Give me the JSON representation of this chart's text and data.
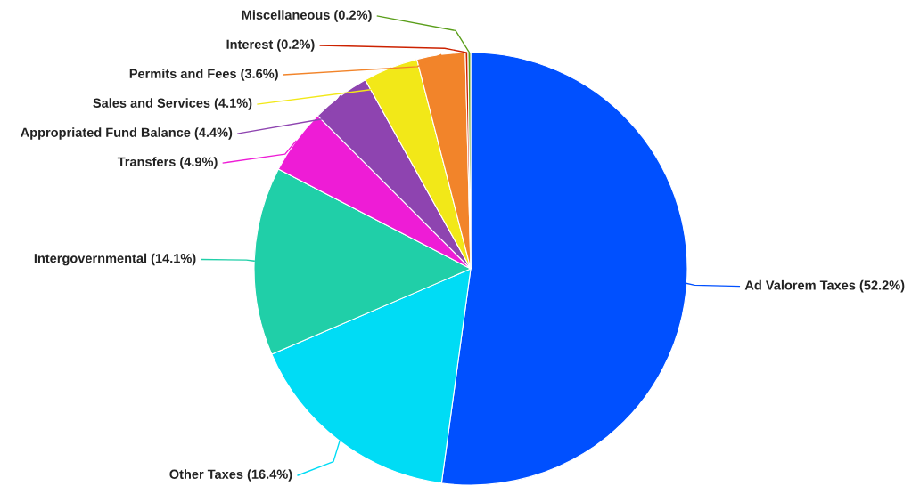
{
  "chart_data": {
    "type": "pie",
    "categories": [
      "Ad Valorem Taxes",
      "Other Taxes",
      "Intergovernmental",
      "Transfers",
      "Appropriated Fund Balance",
      "Sales and Services",
      "Permits and Fees",
      "Interest",
      "Miscellaneous"
    ],
    "values": [
      52.2,
      16.4,
      14.1,
      4.9,
      4.4,
      4.1,
      3.6,
      0.2,
      0.2
    ],
    "value_labels": [
      "(52.2%)",
      "(16.4%)",
      "(14.1%)",
      "(4.9%)",
      "(4.4%)",
      "(4.1%)",
      "(3.6%)",
      "(0.2%)",
      "(0.2%)"
    ],
    "colors": [
      "#0050ff",
      "#00dcf5",
      "#20cfa8",
      "#ee1cd6",
      "#8e44b0",
      "#f2e818",
      "#f2842a",
      "#cc2200",
      "#5a9e1a"
    ],
    "legend": false
  }
}
